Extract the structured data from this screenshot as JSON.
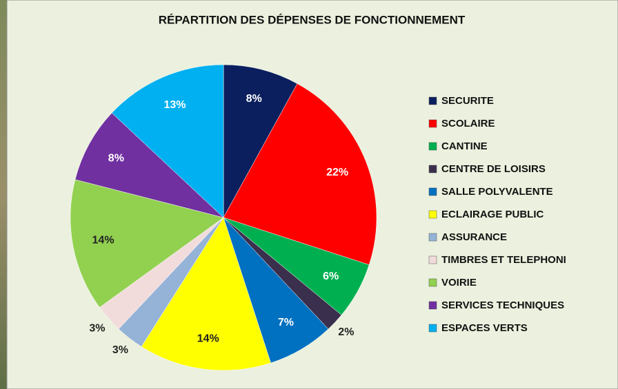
{
  "chart_data": {
    "type": "pie",
    "title": "RÉPARTITION DES DÉPENSES DE FONCTIONNEMENT",
    "categories": [
      "SECURITE",
      "SCOLAIRE",
      "CANTINE",
      "CENTRE DE LOISIRS",
      "SALLE POLYVALENTE",
      "ECLAIRAGE PUBLIC",
      "ASSURANCE",
      "TIMBRES ET TELEPHONI",
      "VOIRIE",
      "SERVICES TECHNIQUES",
      "ESPACES VERTS"
    ],
    "values": [
      8,
      22,
      6,
      2,
      7,
      14,
      3,
      3,
      14,
      8,
      13
    ],
    "value_labels": [
      "8%",
      "22%",
      "6%",
      "2%",
      "7%",
      "14%",
      "3%",
      "3%",
      "14%",
      "8%",
      "13%"
    ],
    "colors": [
      "#0b1f5e",
      "#ff0000",
      "#00b050",
      "#3a2f4d",
      "#0070c0",
      "#ffff00",
      "#95b3d7",
      "#f2dcdb",
      "#92d050",
      "#7030a0",
      "#00b0f0"
    ],
    "legend": "right"
  }
}
